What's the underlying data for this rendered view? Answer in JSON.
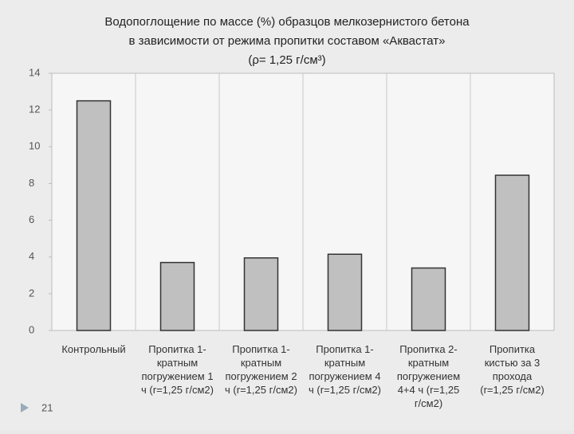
{
  "chart_data": {
    "type": "bar",
    "title": [
      "Водопоглощение по массе (%) образцов мелкозернистого бетона",
      "в зависимости от режима пропитки составом «Аквастат»",
      "(ρ= 1,25 г/см³)"
    ],
    "categories": [
      "Контрольный",
      "Пропитка 1-\nкратным\nпогружением 1\nч (r=1,25 г/см2)",
      "Пропитка 1-\nкратным\nпогружением 2\nч (r=1,25 г/см2)",
      "Пропитка 1-\nкратным\nпогружением 4\nч (r=1,25 г/см2)",
      "Пропитка 2-\nкратным\nпогружением\n4+4 ч (r=1,25\nг/см2)",
      "Пропитка\nкистью за 3\nпрохода\n(r=1,25 г/см2)"
    ],
    "values": [
      12.5,
      3.7,
      3.95,
      4.15,
      3.4,
      8.45
    ],
    "color": "#c0c0c0",
    "ylim": [
      0,
      14
    ],
    "yticks": [
      0,
      2,
      4,
      6,
      8,
      10,
      12,
      14
    ],
    "grid": true
  },
  "page_number": "21"
}
